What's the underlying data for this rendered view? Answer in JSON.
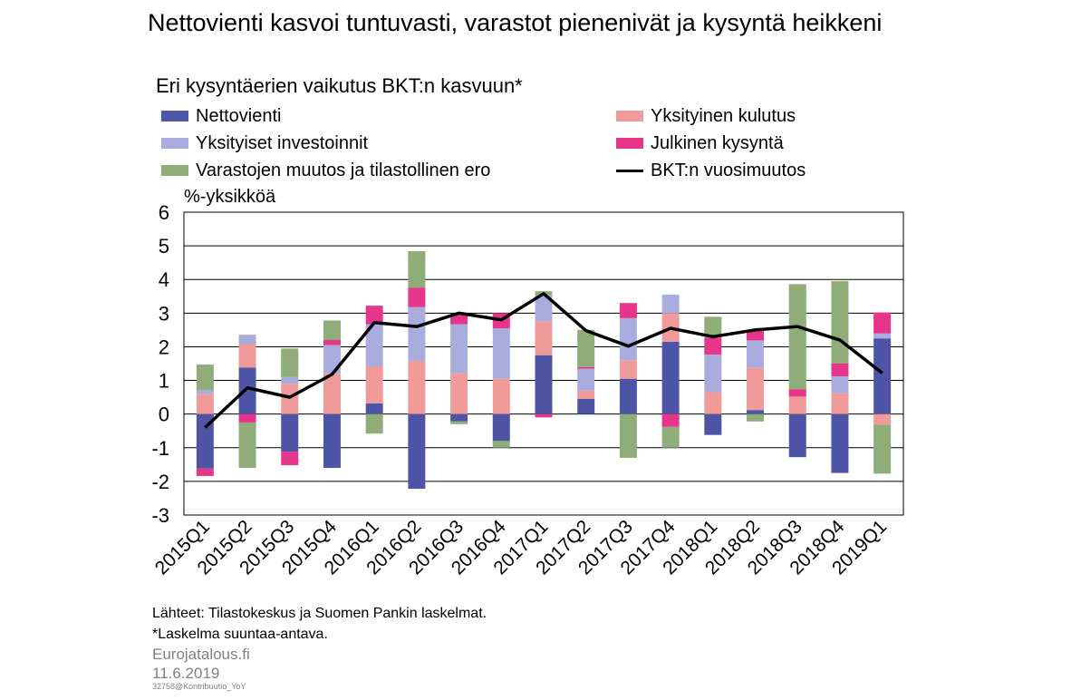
{
  "title": "Nettovienti kasvoi tuntuvasti, varastot pienenivät ja kysyntä heikkeni",
  "footer": {
    "source": "Lähteet: Tilastokeskus ja Suomen Pankin laskelmat.",
    "note": "*Laskelma suuntaa-antava.",
    "brand": "Eurojatalous.fi",
    "date": "11.6.2019",
    "code": "32758@Kontribuutio_YoY"
  },
  "chart_data": {
    "type": "bar",
    "subtitle": "Eri kysyntäerien vaikutus BKT:n kasvuun*",
    "ylabel": "%-yksikköä",
    "ylim": [
      -3,
      6
    ],
    "yticks": [
      -3,
      -2,
      -1,
      0,
      1,
      2,
      3,
      4,
      5,
      6
    ],
    "grid": true,
    "legend_position": "top",
    "categories": [
      "2015Q1",
      "2015Q2",
      "2015Q3",
      "2015Q4",
      "2016Q1",
      "2016Q2",
      "2016Q3",
      "2016Q4",
      "2017Q1",
      "2017Q2",
      "2017Q3",
      "2017Q4",
      "2018Q1",
      "2018Q2",
      "2018Q3",
      "2018Q4",
      "2019Q1"
    ],
    "series": [
      {
        "name": "Nettovienti",
        "kind": "bar",
        "color": "#4F55A6",
        "values": [
          -1.62,
          1.38,
          -1.12,
          -1.6,
          0.32,
          -2.22,
          -0.22,
          -0.8,
          1.75,
          0.45,
          1.05,
          2.15,
          -0.62,
          0.12,
          -1.28,
          -1.75,
          2.25
        ]
      },
      {
        "name": "Yksityinen kulutus",
        "kind": "bar",
        "color": "#F09A9A",
        "values": [
          0.6,
          0.7,
          0.9,
          1.2,
          1.1,
          1.58,
          1.22,
          1.05,
          1.0,
          0.25,
          0.55,
          0.85,
          0.65,
          1.25,
          0.52,
          0.62,
          -0.32
        ]
      },
      {
        "name": "Yksityiset investoinnit",
        "kind": "bar",
        "color": "#A9ADDD",
        "values": [
          0.12,
          0.28,
          0.2,
          0.85,
          1.25,
          1.6,
          1.45,
          1.5,
          0.8,
          0.65,
          1.25,
          0.55,
          1.12,
          0.82,
          0.0,
          0.5,
          0.15
        ]
      },
      {
        "name": "Julkinen kysyntä",
        "kind": "bar",
        "color": "#E6358A",
        "values": [
          -0.22,
          -0.25,
          -0.4,
          0.15,
          0.55,
          0.58,
          0.28,
          0.45,
          -0.1,
          0.05,
          0.45,
          -0.38,
          0.5,
          0.28,
          0.22,
          0.38,
          0.62
        ]
      },
      {
        "name": "Varastojen muutos ja tilastollinen ero",
        "kind": "bar",
        "color": "#8FAD78",
        "values": [
          0.75,
          -1.35,
          0.85,
          0.58,
          -0.58,
          1.08,
          -0.08,
          -0.2,
          0.1,
          1.1,
          -1.3,
          -0.62,
          0.62,
          -0.22,
          3.12,
          2.45,
          -1.45
        ]
      },
      {
        "name": "BKT:n vuosimuutos",
        "kind": "line",
        "color": "#000000",
        "values": [
          -0.4,
          0.78,
          0.5,
          1.18,
          2.72,
          2.6,
          3.0,
          2.8,
          3.58,
          2.48,
          2.02,
          2.55,
          2.3,
          2.5,
          2.6,
          2.2,
          1.22
        ]
      }
    ]
  }
}
